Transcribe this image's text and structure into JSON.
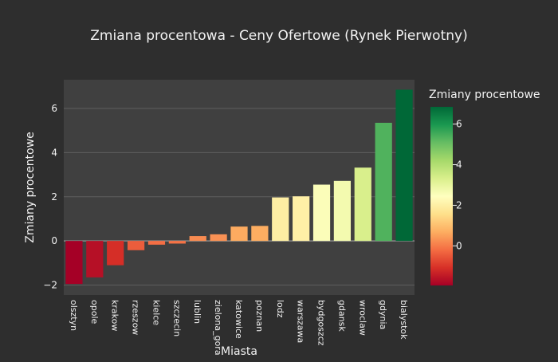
{
  "chart_data": {
    "type": "bar",
    "title": "Zmiana procentowa - Ceny Ofertowe (Rynek Pierwotny)",
    "xlabel": "Miasta",
    "ylabel": "Zmiany procentowe",
    "categories": [
      "olsztyn",
      "opole",
      "krakow",
      "rzeszow",
      "kielce",
      "szczecin",
      "lublin",
      "zielona_gora",
      "katowice",
      "poznan",
      "lodz",
      "warszawa",
      "bydgoszcz",
      "gdansk",
      "wroclaw",
      "gdynia",
      "bialystok"
    ],
    "values": [
      -1.95,
      -1.65,
      -1.1,
      -0.42,
      -0.17,
      -0.12,
      0.22,
      0.3,
      0.65,
      0.68,
      1.97,
      2.02,
      2.55,
      2.72,
      3.32,
      5.35,
      6.85
    ],
    "ylim": [
      -2.45,
      7.3
    ],
    "yticks": [
      -2,
      0,
      2,
      4,
      6
    ],
    "grid": true,
    "colorbar": {
      "title": "Zmiany procentowe",
      "range": [
        -1.95,
        6.85
      ],
      "ticks": [
        0,
        2,
        4,
        6
      ],
      "colorscale": "RdYlGn"
    }
  }
}
